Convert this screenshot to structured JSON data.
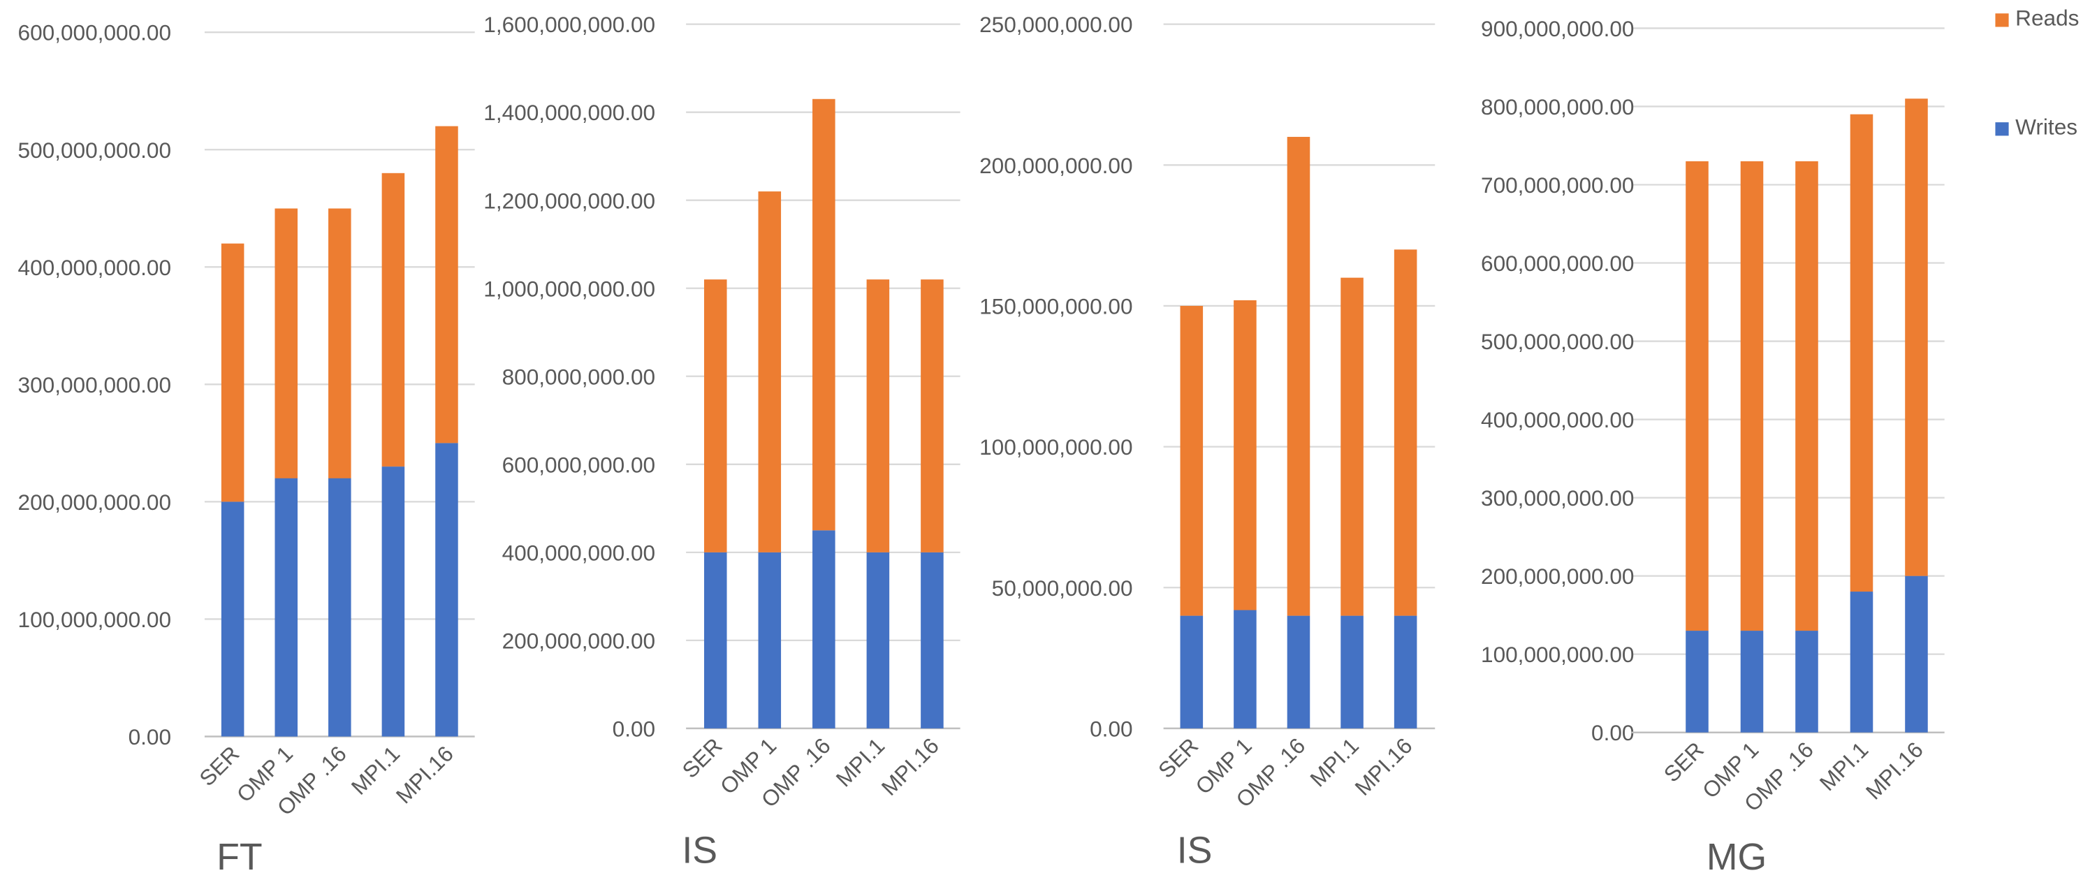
{
  "legend": {
    "reads_label": "Reads",
    "writes_label": "Writes",
    "reads_color": "#ED7D31",
    "writes_color": "#4472C4"
  },
  "chart_data": [
    {
      "type": "bar",
      "stacked": true,
      "title": "FT",
      "categories": [
        "SER",
        "OMP 1",
        "OMP .16",
        "MPI.1",
        "MPI.16"
      ],
      "series": [
        {
          "name": "Writes",
          "values": [
            200000000,
            220000000,
            220000000,
            230000000,
            250000000
          ]
        },
        {
          "name": "Reads",
          "values": [
            220000000,
            230000000,
            230000000,
            250000000,
            270000000
          ]
        }
      ],
      "ylim": [
        0,
        600000000
      ],
      "yticks": [
        "0.00",
        "100,000,000.00",
        "200,000,000.00",
        "300,000,000.00",
        "400,000,000.00",
        "500,000,000.00",
        "600,000,000.00"
      ],
      "grid": true
    },
    {
      "type": "bar",
      "stacked": true,
      "title": "IS",
      "categories": [
        "SER",
        "OMP 1",
        "OMP .16",
        "MPI.1",
        "MPI.16"
      ],
      "series": [
        {
          "name": "Writes",
          "values": [
            400000000,
            400000000,
            450000000,
            400000000,
            400000000
          ]
        },
        {
          "name": "Reads",
          "values": [
            620000000,
            820000000,
            980000000,
            620000000,
            620000000
          ]
        }
      ],
      "ylim": [
        0,
        1600000000
      ],
      "yticks": [
        "0.00",
        "200,000,000.00",
        "400,000,000.00",
        "600,000,000.00",
        "800,000,000.00",
        "1,000,000,000.00",
        "1,200,000,000.00",
        "1,400,000,000.00",
        "1,600,000,000.00"
      ],
      "grid": true
    },
    {
      "type": "bar",
      "stacked": true,
      "title": "IS",
      "categories": [
        "SER",
        "OMP 1",
        "OMP .16",
        "MPI.1",
        "MPI.16"
      ],
      "series": [
        {
          "name": "Writes",
          "values": [
            40000000,
            42000000,
            40000000,
            40000000,
            40000000
          ]
        },
        {
          "name": "Reads",
          "values": [
            110000000,
            110000000,
            170000000,
            120000000,
            130000000
          ]
        }
      ],
      "ylim": [
        0,
        250000000
      ],
      "yticks": [
        "0.00",
        "50,000,000.00",
        "100,000,000.00",
        "150,000,000.00",
        "200,000,000.00",
        "250,000,000.00"
      ],
      "grid": true
    },
    {
      "type": "bar",
      "stacked": true,
      "title": "MG",
      "categories": [
        "SER",
        "OMP 1",
        "OMP .16",
        "MPI.1",
        "MPI.16"
      ],
      "series": [
        {
          "name": "Writes",
          "values": [
            130000000,
            130000000,
            130000000,
            180000000,
            200000000
          ]
        },
        {
          "name": "Reads",
          "values": [
            600000000,
            600000000,
            600000000,
            610000000,
            610000000
          ]
        }
      ],
      "ylim": [
        0,
        900000000
      ],
      "yticks": [
        "0.00",
        "100,000,000.00",
        "200,000,000.00",
        "300,000,000.00",
        "400,000,000.00",
        "500,000,000.00",
        "600,000,000.00",
        "700,000,000.00",
        "800,000,000.00",
        "900,000,000.00"
      ],
      "grid": true
    }
  ]
}
